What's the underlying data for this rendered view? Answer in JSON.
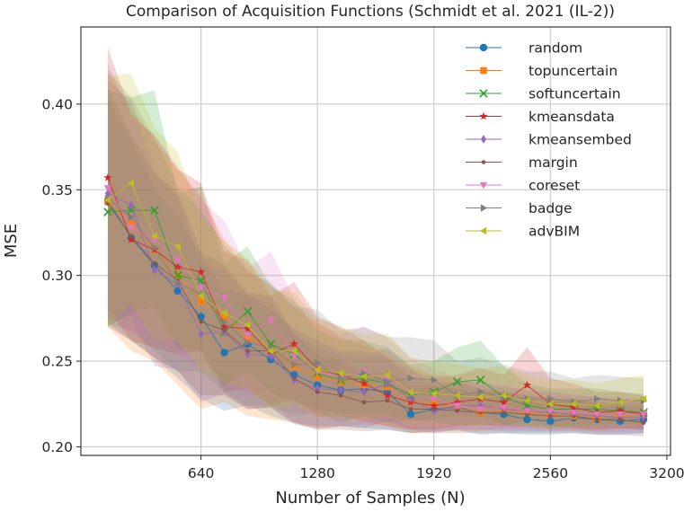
{
  "chart_data": {
    "type": "line",
    "title": "Comparison of Acquisition Functions (Schmidt et al. 2021 (IL-2))",
    "xlabel": "Number of Samples (N)",
    "ylabel": "MSE",
    "xlim": [
      -20,
      3220
    ],
    "ylim": [
      0.195,
      0.445
    ],
    "xticks": [
      640,
      1280,
      1920,
      2560,
      3200
    ],
    "xtick_labels": [
      "640",
      "1280",
      "1920",
      "2560",
      "3200"
    ],
    "yticks": [
      0.2,
      0.25,
      0.3,
      0.35,
      0.4
    ],
    "ytick_labels": [
      "0.20",
      "0.25",
      "0.30",
      "0.35",
      "0.40"
    ],
    "grid": true,
    "legend_position": "top-right",
    "x": [
      128,
      256,
      384,
      512,
      640,
      768,
      896,
      1024,
      1152,
      1280,
      1408,
      1536,
      1664,
      1792,
      1920,
      2048,
      2176,
      2304,
      2432,
      2560,
      2688,
      2816,
      2944,
      3072
    ],
    "series": [
      {
        "name": "random",
        "color": "#1f77b4",
        "marker": "circle",
        "values": [
          0.344,
          0.322,
          0.306,
          0.291,
          0.276,
          0.255,
          0.26,
          0.251,
          0.242,
          0.236,
          0.233,
          0.234,
          0.232,
          0.219,
          0.222,
          0.223,
          0.22,
          0.219,
          0.216,
          0.215,
          0.217,
          0.216,
          0.215,
          0.216
        ],
        "lower": [
          0.272,
          0.262,
          0.252,
          0.24,
          0.228,
          0.221,
          0.224,
          0.218,
          0.214,
          0.212,
          0.212,
          0.211,
          0.21,
          0.208,
          0.209,
          0.21,
          0.207,
          0.208,
          0.207,
          0.207,
          0.208,
          0.207,
          0.207,
          0.208
        ],
        "upper": [
          0.402,
          0.378,
          0.352,
          0.334,
          0.312,
          0.292,
          0.289,
          0.28,
          0.269,
          0.262,
          0.256,
          0.256,
          0.252,
          0.24,
          0.238,
          0.238,
          0.234,
          0.232,
          0.228,
          0.226,
          0.228,
          0.226,
          0.225,
          0.226
        ]
      },
      {
        "name": "topuncertain",
        "color": "#ff7f0e",
        "marker": "square",
        "values": [
          0.343,
          0.33,
          0.315,
          0.3,
          0.285,
          0.276,
          0.263,
          0.258,
          0.247,
          0.241,
          0.238,
          0.236,
          0.235,
          0.227,
          0.225,
          0.224,
          0.22,
          0.222,
          0.22,
          0.219,
          0.218,
          0.217,
          0.218,
          0.219
        ],
        "lower": [
          0.27,
          0.256,
          0.25,
          0.236,
          0.222,
          0.226,
          0.218,
          0.216,
          0.214,
          0.21,
          0.212,
          0.213,
          0.212,
          0.208,
          0.209,
          0.209,
          0.209,
          0.211,
          0.211,
          0.21,
          0.21,
          0.209,
          0.21,
          0.211
        ],
        "upper": [
          0.418,
          0.398,
          0.378,
          0.362,
          0.346,
          0.321,
          0.303,
          0.294,
          0.281,
          0.272,
          0.264,
          0.259,
          0.256,
          0.247,
          0.242,
          0.24,
          0.234,
          0.234,
          0.231,
          0.229,
          0.228,
          0.227,
          0.227,
          0.228
        ]
      },
      {
        "name": "softuncertain",
        "color": "#2ca02c",
        "marker": "x",
        "values": [
          0.337,
          0.338,
          0.338,
          0.3,
          0.297,
          0.267,
          0.279,
          0.26,
          0.254,
          0.243,
          0.239,
          0.24,
          0.237,
          0.23,
          0.232,
          0.238,
          0.239,
          0.229,
          0.224,
          0.222,
          0.222,
          0.222,
          0.221,
          0.22
        ],
        "lower": [
          0.27,
          0.278,
          0.282,
          0.257,
          0.256,
          0.236,
          0.244,
          0.232,
          0.226,
          0.222,
          0.219,
          0.22,
          0.219,
          0.215,
          0.216,
          0.218,
          0.217,
          0.213,
          0.212,
          0.211,
          0.211,
          0.211,
          0.211,
          0.21
        ],
        "upper": [
          0.408,
          0.404,
          0.408,
          0.348,
          0.352,
          0.307,
          0.317,
          0.294,
          0.285,
          0.268,
          0.262,
          0.262,
          0.258,
          0.248,
          0.25,
          0.258,
          0.262,
          0.247,
          0.237,
          0.234,
          0.234,
          0.234,
          0.232,
          0.231
        ]
      },
      {
        "name": "kmeansdata",
        "color": "#d62728",
        "marker": "star",
        "values": [
          0.357,
          0.321,
          0.315,
          0.305,
          0.302,
          0.27,
          0.269,
          0.254,
          0.26,
          0.245,
          0.242,
          0.237,
          0.23,
          0.226,
          0.224,
          0.226,
          0.228,
          0.226,
          0.236,
          0.225,
          0.223,
          0.22,
          0.221,
          0.219
        ],
        "lower": [
          0.28,
          0.262,
          0.258,
          0.254,
          0.256,
          0.232,
          0.234,
          0.224,
          0.228,
          0.218,
          0.218,
          0.215,
          0.212,
          0.21,
          0.21,
          0.212,
          0.213,
          0.212,
          0.216,
          0.212,
          0.211,
          0.21,
          0.211,
          0.21
        ],
        "upper": [
          0.433,
          0.394,
          0.382,
          0.362,
          0.354,
          0.314,
          0.309,
          0.288,
          0.296,
          0.276,
          0.27,
          0.262,
          0.252,
          0.245,
          0.24,
          0.242,
          0.246,
          0.242,
          0.258,
          0.24,
          0.237,
          0.232,
          0.232,
          0.23
        ]
      },
      {
        "name": "kmeansembed",
        "color": "#9467bd",
        "marker": "diamond",
        "values": [
          0.348,
          0.341,
          0.303,
          0.295,
          0.266,
          0.267,
          0.254,
          0.253,
          0.239,
          0.234,
          0.233,
          0.232,
          0.237,
          0.228,
          0.221,
          0.224,
          0.224,
          0.222,
          0.221,
          0.22,
          0.219,
          0.218,
          0.217,
          0.217
        ],
        "lower": [
          0.274,
          0.276,
          0.247,
          0.245,
          0.226,
          0.231,
          0.222,
          0.223,
          0.213,
          0.211,
          0.212,
          0.211,
          0.215,
          0.21,
          0.208,
          0.21,
          0.21,
          0.209,
          0.209,
          0.209,
          0.209,
          0.208,
          0.208,
          0.208
        ],
        "upper": [
          0.414,
          0.402,
          0.361,
          0.346,
          0.306,
          0.304,
          0.288,
          0.284,
          0.266,
          0.258,
          0.254,
          0.252,
          0.258,
          0.246,
          0.235,
          0.238,
          0.238,
          0.235,
          0.233,
          0.232,
          0.23,
          0.229,
          0.227,
          0.227
        ]
      },
      {
        "name": "margin",
        "color": "#8c564b",
        "marker": "dot",
        "values": [
          0.342,
          0.323,
          0.307,
          0.297,
          0.273,
          0.268,
          0.256,
          0.256,
          0.24,
          0.232,
          0.23,
          0.226,
          0.227,
          0.222,
          0.222,
          0.221,
          0.22,
          0.22,
          0.219,
          0.218,
          0.218,
          0.216,
          0.216,
          0.214
        ],
        "lower": [
          0.27,
          0.262,
          0.252,
          0.244,
          0.23,
          0.23,
          0.222,
          0.223,
          0.214,
          0.21,
          0.21,
          0.209,
          0.21,
          0.208,
          0.208,
          0.208,
          0.208,
          0.208,
          0.208,
          0.208,
          0.208,
          0.207,
          0.207,
          0.206
        ],
        "upper": [
          0.41,
          0.382,
          0.36,
          0.348,
          0.314,
          0.306,
          0.29,
          0.288,
          0.266,
          0.254,
          0.25,
          0.243,
          0.244,
          0.236,
          0.236,
          0.234,
          0.232,
          0.232,
          0.23,
          0.228,
          0.228,
          0.225,
          0.225,
          0.222
        ]
      },
      {
        "name": "coreset",
        "color": "#e377c2",
        "marker": "triangle-down",
        "values": [
          0.351,
          0.328,
          0.321,
          0.309,
          0.293,
          0.287,
          0.265,
          0.274,
          0.253,
          0.244,
          0.24,
          0.244,
          0.24,
          0.232,
          0.228,
          0.224,
          0.222,
          0.223,
          0.221,
          0.221,
          0.22,
          0.219,
          0.219,
          0.219
        ],
        "lower": [
          0.278,
          0.266,
          0.264,
          0.254,
          0.244,
          0.244,
          0.228,
          0.236,
          0.222,
          0.217,
          0.216,
          0.218,
          0.216,
          0.212,
          0.211,
          0.21,
          0.21,
          0.21,
          0.21,
          0.21,
          0.21,
          0.209,
          0.209,
          0.21
        ],
        "upper": [
          0.424,
          0.392,
          0.382,
          0.364,
          0.344,
          0.332,
          0.304,
          0.314,
          0.286,
          0.272,
          0.266,
          0.27,
          0.264,
          0.252,
          0.246,
          0.24,
          0.236,
          0.236,
          0.233,
          0.232,
          0.231,
          0.229,
          0.229,
          0.228
        ]
      },
      {
        "name": "badge",
        "color": "#7f7f7f",
        "marker": "triangle-right",
        "values": [
          0.345,
          0.334,
          0.316,
          0.296,
          0.289,
          0.273,
          0.261,
          0.258,
          0.248,
          0.249,
          0.24,
          0.243,
          0.238,
          0.24,
          0.239,
          0.23,
          0.232,
          0.229,
          0.228,
          0.228,
          0.226,
          0.228,
          0.227,
          0.227
        ],
        "lower": [
          0.272,
          0.268,
          0.256,
          0.244,
          0.244,
          0.232,
          0.224,
          0.224,
          0.218,
          0.22,
          0.214,
          0.218,
          0.214,
          0.216,
          0.215,
          0.212,
          0.213,
          0.212,
          0.212,
          0.212,
          0.212,
          0.213,
          0.213,
          0.213
        ],
        "upper": [
          0.42,
          0.404,
          0.38,
          0.352,
          0.338,
          0.318,
          0.302,
          0.296,
          0.282,
          0.28,
          0.268,
          0.27,
          0.264,
          0.264,
          0.262,
          0.25,
          0.252,
          0.248,
          0.244,
          0.244,
          0.24,
          0.242,
          0.241,
          0.24
        ]
      },
      {
        "name": "advBIM",
        "color": "#bcbd22",
        "marker": "triangle-left",
        "values": [
          0.344,
          0.354,
          0.323,
          0.317,
          0.288,
          0.278,
          0.271,
          0.256,
          0.256,
          0.245,
          0.243,
          0.241,
          0.242,
          0.232,
          0.231,
          0.23,
          0.229,
          0.23,
          0.227,
          0.225,
          0.225,
          0.224,
          0.226,
          0.228
        ],
        "lower": [
          0.27,
          0.284,
          0.262,
          0.262,
          0.244,
          0.238,
          0.234,
          0.222,
          0.224,
          0.217,
          0.217,
          0.216,
          0.217,
          0.212,
          0.212,
          0.212,
          0.212,
          0.213,
          0.212,
          0.211,
          0.211,
          0.211,
          0.212,
          0.213
        ],
        "upper": [
          0.416,
          0.418,
          0.386,
          0.372,
          0.334,
          0.32,
          0.31,
          0.292,
          0.29,
          0.274,
          0.27,
          0.266,
          0.266,
          0.252,
          0.25,
          0.248,
          0.246,
          0.247,
          0.242,
          0.239,
          0.239,
          0.237,
          0.24,
          0.242
        ]
      }
    ]
  }
}
